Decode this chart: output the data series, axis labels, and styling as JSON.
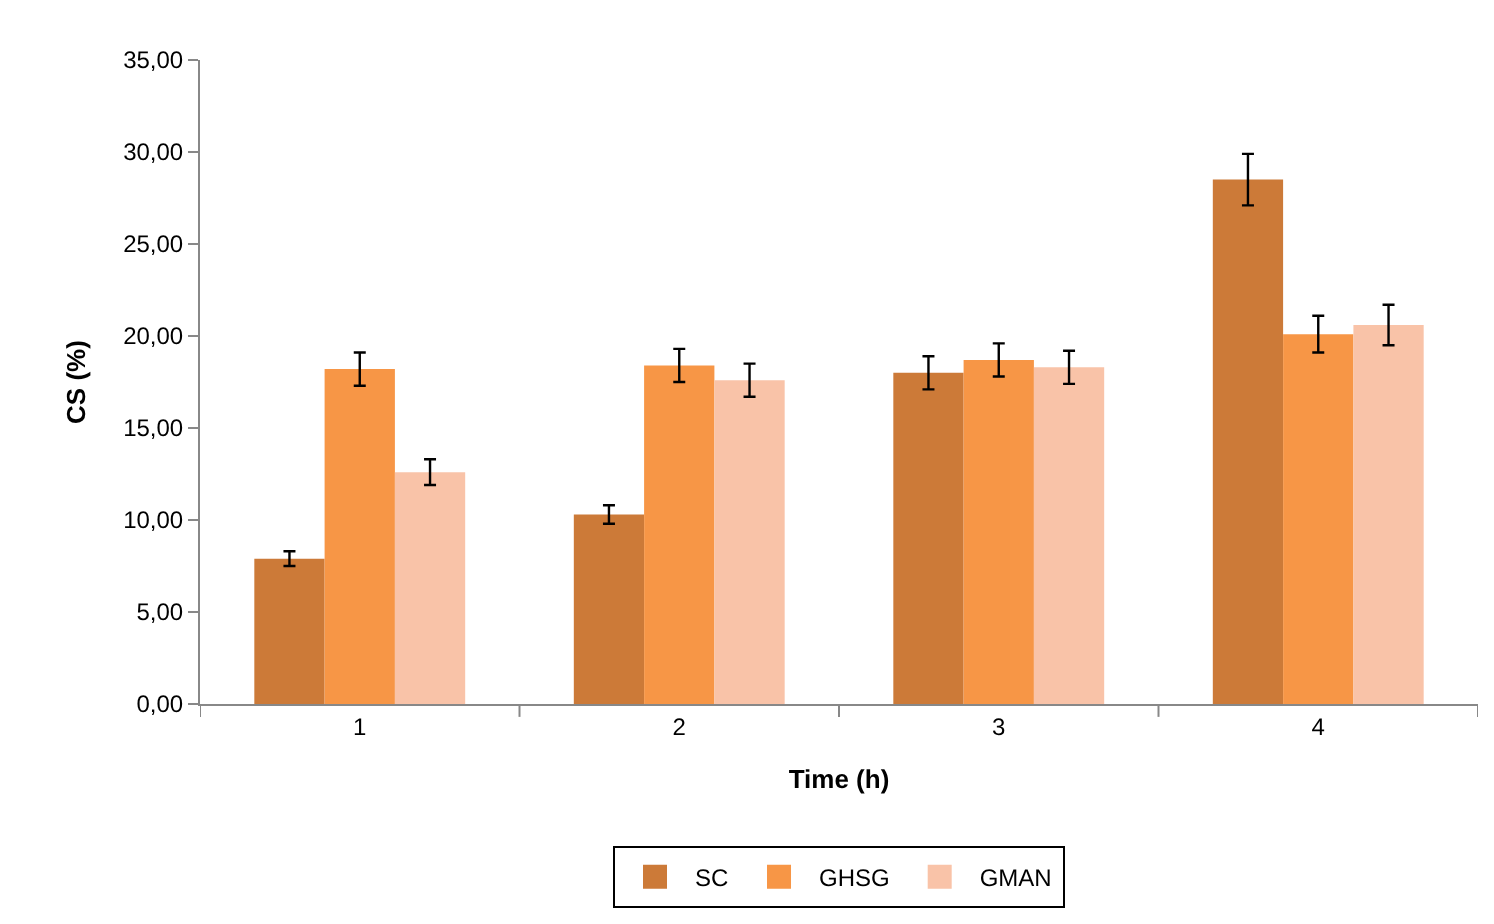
{
  "chart_data": {
    "type": "bar",
    "xlabel": "Time (h)",
    "ylabel": "CS (%)",
    "categories": [
      "1",
      "2",
      "3",
      "4"
    ],
    "series": [
      {
        "name": "SC",
        "color": "#cc7a38",
        "values": [
          7.9,
          10.3,
          18.0,
          28.5
        ],
        "errors": [
          0.4,
          0.5,
          0.9,
          1.4
        ]
      },
      {
        "name": "GHSG",
        "color": "#f79646",
        "values": [
          18.2,
          18.4,
          18.7,
          20.1
        ],
        "errors": [
          0.9,
          0.9,
          0.9,
          1.0
        ]
      },
      {
        "name": "GMAN",
        "color": "#f9c3a8",
        "values": [
          12.6,
          17.6,
          18.3,
          20.6
        ],
        "errors": [
          0.7,
          0.9,
          0.9,
          1.1
        ]
      }
    ],
    "ylim": [
      0,
      35
    ],
    "yticks": [
      {
        "value": 0,
        "label": "0,00"
      },
      {
        "value": 5,
        "label": "5,00"
      },
      {
        "value": 10,
        "label": "10,00"
      },
      {
        "value": 15,
        "label": "15,00"
      },
      {
        "value": 20,
        "label": "20,00"
      },
      {
        "value": 25,
        "label": "25,00"
      },
      {
        "value": 30,
        "label": "30,00"
      },
      {
        "value": 35,
        "label": "35,00"
      }
    ],
    "legend": "bottom"
  }
}
